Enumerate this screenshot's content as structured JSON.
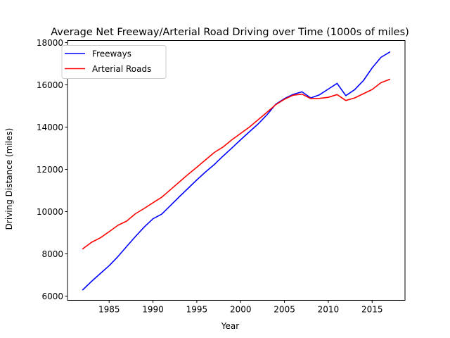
{
  "chart_data": {
    "type": "line",
    "title": "Average Net Freeway/Arterial Road Driving over Time (1000s of miles)",
    "xlabel": "Year",
    "ylabel": "Driving Distance (miles)",
    "xlim": [
      1980.25,
      2018.75
    ],
    "ylim": [
      5800,
      18100
    ],
    "xticks": [
      1985,
      1990,
      1995,
      2000,
      2005,
      2010,
      2015
    ],
    "yticks": [
      6000,
      8000,
      10000,
      12000,
      14000,
      16000,
      18000
    ],
    "grid": false,
    "legend_position": "top-left",
    "x": [
      1982,
      1983,
      1984,
      1985,
      1986,
      1987,
      1988,
      1989,
      1990,
      1991,
      1992,
      1993,
      1994,
      1995,
      1996,
      1997,
      1998,
      1999,
      2000,
      2001,
      2002,
      2003,
      2004,
      2005,
      2006,
      2007,
      2008,
      2009,
      2010,
      2011,
      2012,
      2013,
      2014,
      2015,
      2016,
      2017
    ],
    "series": [
      {
        "name": "Freeways",
        "color": "#0000ff",
        "values": [
          6300,
          6700,
          7070,
          7440,
          7870,
          8350,
          8820,
          9270,
          9660,
          9880,
          10290,
          10700,
          11100,
          11500,
          11880,
          12230,
          12630,
          13010,
          13400,
          13780,
          14150,
          14580,
          15080,
          15350,
          15550,
          15670,
          15380,
          15530,
          15800,
          16070,
          15490,
          15770,
          16200,
          16800,
          17300,
          17550
        ]
      },
      {
        "name": "Arterial Roads",
        "color": "#ff0000",
        "values": [
          8240,
          8550,
          8760,
          9050,
          9350,
          9550,
          9900,
          10150,
          10420,
          10680,
          11040,
          11400,
          11760,
          12100,
          12450,
          12800,
          13060,
          13400,
          13700,
          14000,
          14350,
          14700,
          15060,
          15320,
          15510,
          15560,
          15350,
          15360,
          15410,
          15540,
          15260,
          15380,
          15580,
          15780,
          16100,
          16260
        ]
      }
    ]
  }
}
